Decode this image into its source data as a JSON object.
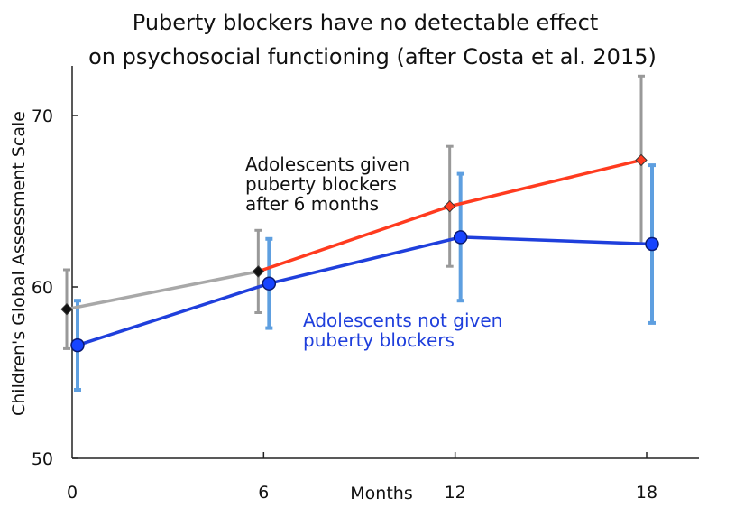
{
  "chart_data": {
    "type": "line",
    "title_lines": [
      "Puberty blockers have no detectable effect",
      "on psychosocial functioning (after Costa et al. 2015)"
    ],
    "xlabel": "Months",
    "ylabel": "Children's Global Assessment Scale",
    "x": [
      0,
      6,
      12,
      18
    ],
    "xticks": [
      "0",
      "6",
      "12",
      "18"
    ],
    "yticks": [
      "50",
      "60",
      "70"
    ],
    "ytick_values": [
      50,
      60,
      70
    ],
    "ylim": [
      50,
      73
    ],
    "series": [
      {
        "name": "Adolescents given puberty blockers after 6 months",
        "values": [
          58.7,
          60.9,
          64.7,
          67.4
        ],
        "errors": [
          2.3,
          2.4,
          3.5,
          4.9
        ],
        "colors": {
          "line_before": "#a8a8a8",
          "line_after": "#ff3b1f",
          "marker": "#111111",
          "marker_after": "#ff3b1f",
          "errorbar": "#999999"
        }
      },
      {
        "name": "Adolescents not given puberty blockers",
        "values": [
          56.6,
          60.2,
          62.9,
          62.5
        ],
        "errors": [
          2.6,
          2.6,
          3.7,
          4.6
        ],
        "colors": {
          "line": "#1f3fdc",
          "marker": "#1744ff",
          "errorbar": "#5e9fe0"
        }
      }
    ],
    "annotations": [
      {
        "lines": [
          "Adolescents given",
          "puberty blockers",
          "after 6 months"
        ],
        "color": "#111111"
      },
      {
        "lines": [
          "Adolescents not given",
          "puberty blockers"
        ],
        "color": "#1f3fdc"
      }
    ]
  }
}
